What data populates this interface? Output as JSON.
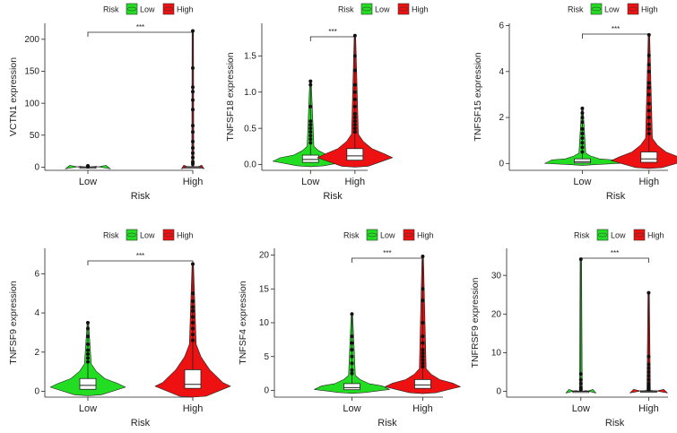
{
  "colors": {
    "low": "#22dd22",
    "high": "#ee1111",
    "axis": "#222222",
    "box": "#ffffff"
  },
  "chart_data": [
    {
      "type": "violin",
      "ylabel": "VCTN1 expression",
      "xlabel": "Risk",
      "categories": [
        "Low",
        "High"
      ],
      "legend": {
        "title": "Risk",
        "items": [
          "Low",
          "High"
        ]
      },
      "significance": "***",
      "ylim": [
        -5,
        225
      ],
      "yticks": [
        0,
        50,
        100,
        150,
        200
      ],
      "groups": [
        {
          "name": "Low",
          "median": 0.1,
          "q1": 0,
          "q3": 0.3,
          "whisker_max": 0.5,
          "spread": 0.6,
          "outliers": [
            1,
            1.5,
            2
          ]
        },
        {
          "name": "High",
          "median": 0.2,
          "q1": 0,
          "q3": 0.5,
          "whisker_max": 1,
          "spread": 0.3,
          "outliers": [
            5,
            8,
            15,
            22,
            30,
            40,
            55,
            65,
            90,
            105,
            118,
            125,
            155,
            213
          ]
        }
      ]
    },
    {
      "type": "violin",
      "ylabel": "TNFSF18 expression",
      "xlabel": "Risk",
      "categories": [
        "Low",
        "High"
      ],
      "legend": {
        "title": "Risk",
        "items": [
          "Low",
          "High"
        ]
      },
      "significance": "***",
      "ylim": [
        -0.08,
        1.95
      ],
      "yticks": [
        0.0,
        0.5,
        1.0,
        1.5
      ],
      "groups": [
        {
          "name": "Low",
          "median": 0.07,
          "q1": 0.03,
          "q3": 0.13,
          "whisker_max": 0.25,
          "spread": 1.0,
          "outliers": [
            0.3,
            0.35,
            0.4,
            0.45,
            0.5,
            0.55,
            0.6,
            0.8,
            1.1,
            1.15
          ]
        },
        {
          "name": "High",
          "median": 0.12,
          "q1": 0.06,
          "q3": 0.22,
          "whisker_max": 0.42,
          "spread": 1.0,
          "outliers": [
            0.45,
            0.5,
            0.55,
            0.6,
            0.65,
            0.7,
            0.8,
            0.9,
            1.0,
            1.1,
            1.3,
            1.5,
            1.78
          ]
        }
      ]
    },
    {
      "type": "violin",
      "ylabel": "TNFSF15 expression",
      "xlabel": "Risk",
      "categories": [
        "Low",
        "High"
      ],
      "legend": {
        "title": "Risk",
        "items": [
          "Low",
          "High"
        ]
      },
      "significance": "***",
      "ylim": [
        -0.3,
        6.1
      ],
      "yticks": [
        0,
        2,
        4,
        6
      ],
      "groups": [
        {
          "name": "Low",
          "median": 0.08,
          "q1": 0.02,
          "q3": 0.2,
          "whisker_max": 0.45,
          "spread": 1.0,
          "outliers": [
            0.5,
            0.7,
            0.9,
            1.1,
            1.3,
            1.5,
            1.8,
            2.0,
            2.2,
            2.4
          ]
        },
        {
          "name": "High",
          "median": 0.2,
          "q1": 0.05,
          "q3": 0.5,
          "whisker_max": 1.1,
          "spread": 1.0,
          "outliers": [
            1.3,
            1.5,
            1.7,
            2.0,
            2.3,
            2.6,
            3.0,
            3.3,
            3.5,
            4.0,
            4.3,
            4.7,
            5.6
          ]
        }
      ]
    },
    {
      "type": "violin",
      "ylabel": "TNFSF9 expression",
      "xlabel": "Risk",
      "categories": [
        "Low",
        "High"
      ],
      "legend": {
        "title": "Risk",
        "items": [
          "Low",
          "High"
        ]
      },
      "significance": "***",
      "ylim": [
        -0.3,
        7.3
      ],
      "yticks": [
        0,
        2,
        4,
        6
      ],
      "groups": [
        {
          "name": "Low",
          "median": 0.3,
          "q1": 0.1,
          "q3": 0.65,
          "whisker_max": 1.4,
          "spread": 1.0,
          "outliers": [
            1.5,
            1.7,
            1.9,
            2.1,
            2.4,
            2.8,
            3.2,
            3.5
          ]
        },
        {
          "name": "High",
          "median": 0.35,
          "q1": 0.15,
          "q3": 1.1,
          "whisker_max": 2.4,
          "spread": 1.0,
          "outliers": [
            2.6,
            2.9,
            3.2,
            3.5,
            3.8,
            4.1,
            4.3,
            4.6,
            5.0,
            6.5
          ]
        }
      ]
    },
    {
      "type": "violin",
      "ylabel": "TNFSF4 expression",
      "xlabel": "Risk",
      "categories": [
        "Low",
        "High"
      ],
      "legend": {
        "title": "Risk",
        "items": [
          "Low",
          "High"
        ]
      },
      "significance": "***",
      "ylim": [
        -1,
        21
      ],
      "yticks": [
        0,
        5,
        10,
        15,
        20
      ],
      "groups": [
        {
          "name": "Low",
          "median": 0.4,
          "q1": 0.1,
          "q3": 1.0,
          "whisker_max": 2.2,
          "spread": 1.0,
          "outliers": [
            2.5,
            3,
            4,
            5,
            6,
            7,
            8,
            11.3
          ]
        },
        {
          "name": "High",
          "median": 0.8,
          "q1": 0.3,
          "q3": 1.6,
          "whisker_max": 3.2,
          "spread": 1.0,
          "outliers": [
            3.5,
            4,
            4.5,
            5,
            5.5,
            6,
            7,
            8,
            10,
            13.3,
            15,
            19.8
          ]
        }
      ]
    },
    {
      "type": "violin",
      "ylabel": "TNFRSF9 expression",
      "xlabel": "Risk",
      "categories": [
        "Low",
        "High"
      ],
      "legend": {
        "title": "Risk",
        "items": [
          "Low",
          "High"
        ]
      },
      "significance": "***",
      "ylim": [
        -1.5,
        37
      ],
      "yticks": [
        0,
        10,
        20,
        30
      ],
      "groups": [
        {
          "name": "Low",
          "median": 0.02,
          "q1": 0,
          "q3": 0.05,
          "whisker_max": 0.1,
          "spread": 0.4,
          "outliers": [
            0.5,
            1,
            2,
            3,
            4.5,
            34.2
          ]
        },
        {
          "name": "High",
          "median": 0.05,
          "q1": 0,
          "q3": 0.12,
          "whisker_max": 0.25,
          "spread": 0.5,
          "outliers": [
            0.5,
            1,
            1.5,
            2,
            3,
            4,
            5,
            6,
            7,
            9,
            25.5
          ]
        }
      ]
    }
  ]
}
